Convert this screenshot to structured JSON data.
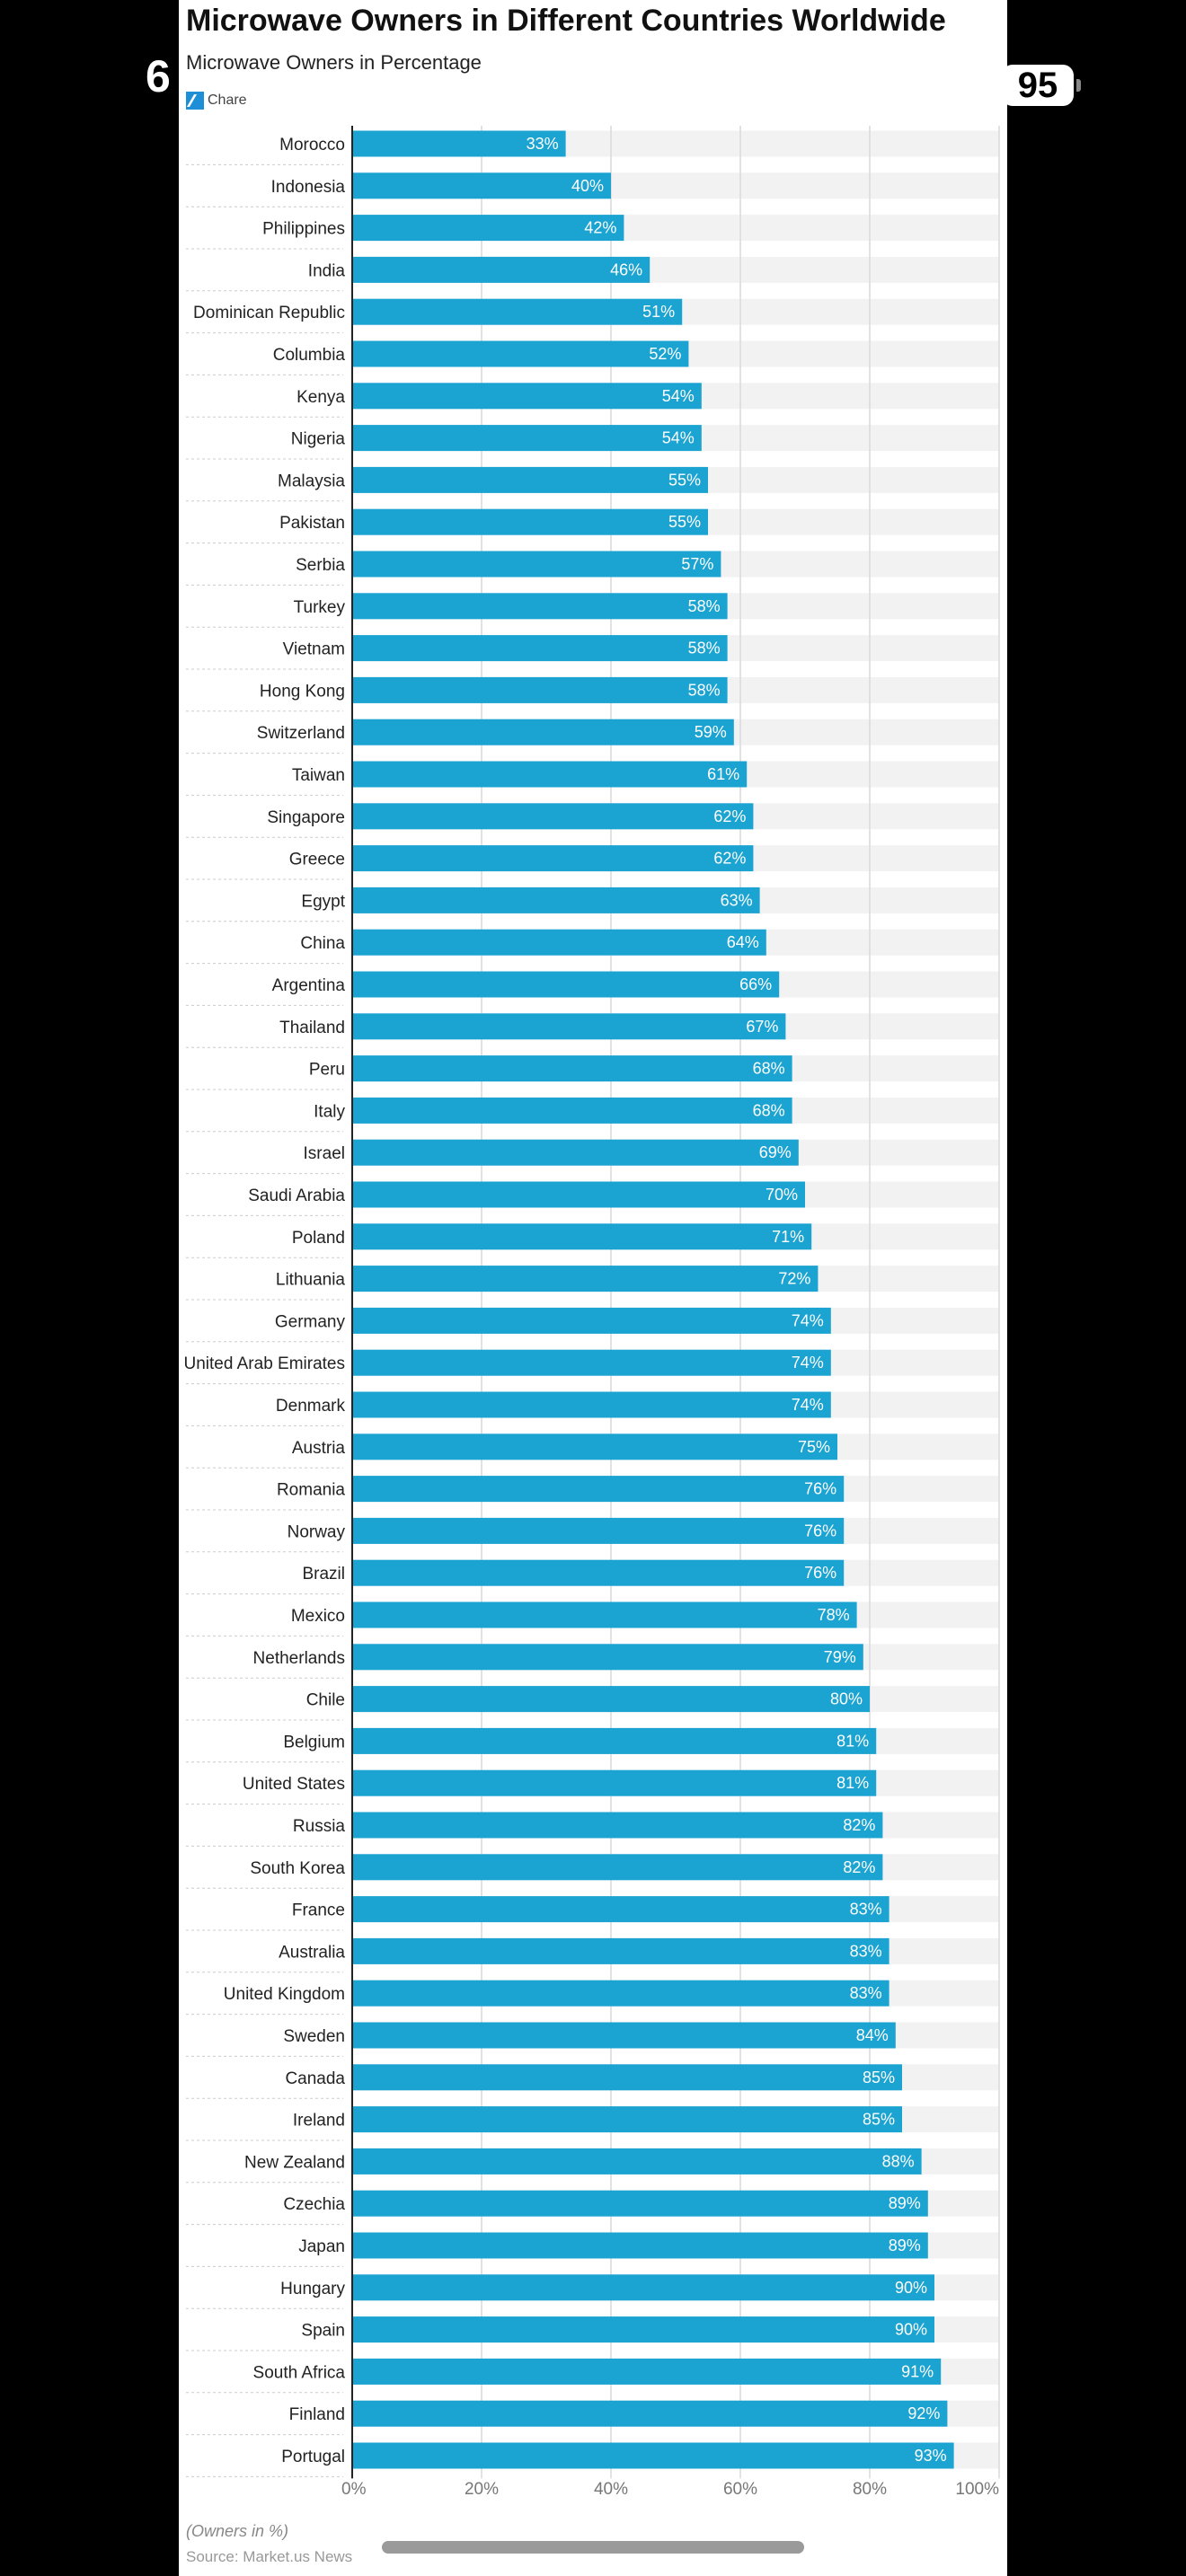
{
  "status_bar": {
    "time": "6",
    "battery": "95"
  },
  "chart_data": {
    "type": "bar",
    "orientation": "horizontal",
    "title": "Microwave Owners in Different Countries Worldwide",
    "subtitle": "Microwave Owners in Percentage",
    "logo_text": "Chare",
    "xlabel": "(Owners in %)",
    "source": "Source: Market.us News",
    "xlim": [
      0,
      100
    ],
    "x_ticks": [
      "0%",
      "20%",
      "40%",
      "60%",
      "80%",
      "100%"
    ],
    "grid": true,
    "colors": {
      "bar": "#1ba3d1",
      "track": "#f2f2f2",
      "grid": "#d9d9d9",
      "label": "#ffffff"
    },
    "categories": [
      "Morocco",
      "Indonesia",
      "Philippines",
      "India",
      "Dominican Republic",
      "Columbia",
      "Kenya",
      "Nigeria",
      "Malaysia",
      "Pakistan",
      "Serbia",
      "Turkey",
      "Vietnam",
      "Hong Kong",
      "Switzerland",
      "Taiwan",
      "Singapore",
      "Greece",
      "Egypt",
      "China",
      "Argentina",
      "Thailand",
      "Peru",
      "Italy",
      "Israel",
      "Saudi Arabia",
      "Poland",
      "Lithuania",
      "Germany",
      "United Arab Emirates",
      "Denmark",
      "Austria",
      "Romania",
      "Norway",
      "Brazil",
      "Mexico",
      "Netherlands",
      "Chile",
      "Belgium",
      "United States",
      "Russia",
      "South Korea",
      "France",
      "Australia",
      "United Kingdom",
      "Sweden",
      "Canada",
      "Ireland",
      "New Zealand",
      "Czechia",
      "Japan",
      "Hungary",
      "Spain",
      "South Africa",
      "Finland",
      "Portugal"
    ],
    "values": [
      33,
      40,
      42,
      46,
      51,
      52,
      54,
      54,
      55,
      55,
      57,
      58,
      58,
      58,
      59,
      61,
      62,
      62,
      63,
      64,
      66,
      67,
      68,
      68,
      69,
      70,
      71,
      72,
      74,
      74,
      74,
      75,
      76,
      76,
      76,
      78,
      79,
      80,
      81,
      81,
      82,
      82,
      83,
      83,
      83,
      84,
      85,
      85,
      88,
      89,
      89,
      90,
      90,
      91,
      92,
      93
    ],
    "value_labels": [
      "33%",
      "40%",
      "42%",
      "46%",
      "51%",
      "52%",
      "54%",
      "54%",
      "55%",
      "55%",
      "57%",
      "58%",
      "58%",
      "58%",
      "59%",
      "61%",
      "62%",
      "62%",
      "63%",
      "64%",
      "66%",
      "67%",
      "68%",
      "68%",
      "69%",
      "70%",
      "71%",
      "72%",
      "74%",
      "74%",
      "74%",
      "75%",
      "76%",
      "76%",
      "76%",
      "78%",
      "79%",
      "80%",
      "81%",
      "81%",
      "82%",
      "82%",
      "83%",
      "83%",
      "83%",
      "84%",
      "85%",
      "85%",
      "88%",
      "89%",
      "89%",
      "90%",
      "90%",
      "91%",
      "92%",
      "93%"
    ]
  }
}
